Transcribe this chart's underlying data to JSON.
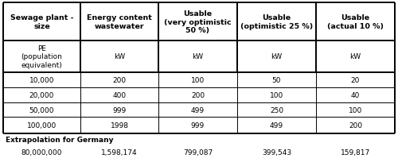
{
  "col_headers": [
    "Sewage plant -\nsize",
    "Energy content\nwastewater",
    "Usable\n(very optimistic\n50 %)",
    "Usable\n(optimistic 25 %)",
    "Usable\n(actual 10 %)"
  ],
  "sub_headers": [
    "PE\n(population\nequivalent)",
    "kW",
    "kW",
    "kW",
    "kW"
  ],
  "data_rows": [
    [
      "10,000",
      "200",
      "100",
      "50",
      "20"
    ],
    [
      "20,000",
      "400",
      "200",
      "100",
      "40"
    ],
    [
      "50,000",
      "999",
      "499",
      "250",
      "100"
    ],
    [
      "100,000",
      "1998",
      "999",
      "499",
      "200"
    ]
  ],
  "extra_label": "Extrapolation for Germany",
  "extra_row": [
    "80,000,000",
    "1,598,174",
    "799,087",
    "399,543",
    "159,817"
  ],
  "bg_color": "#ffffff",
  "border_color": "#000000",
  "text_color": "#000000",
  "font_size": 6.5,
  "header_font_size": 6.8
}
